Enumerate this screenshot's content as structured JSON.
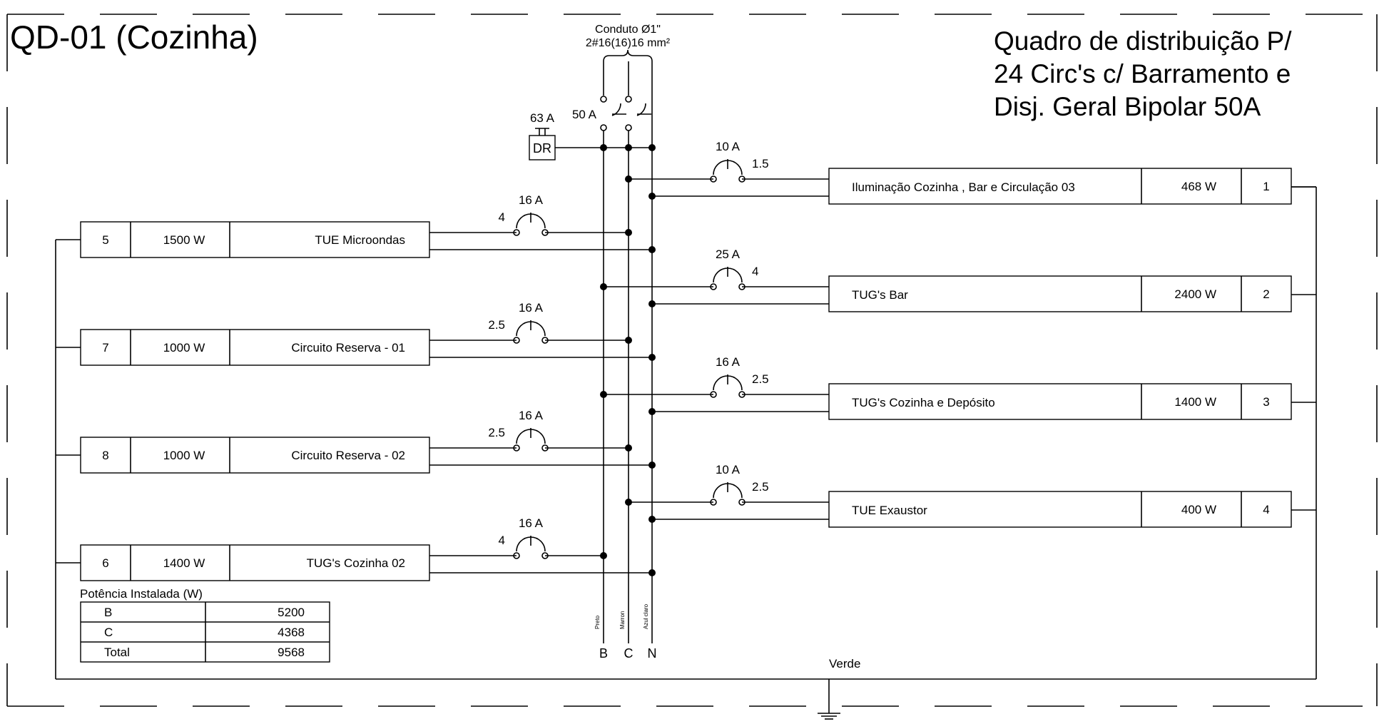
{
  "panel": {
    "name": "QD-01 (Cozinha)",
    "description_lines": [
      "Quadro de distribuição P/",
      "24 Circ's c/ Barramento e",
      "Disj. Geral Bipolar 50A"
    ]
  },
  "main_feed": {
    "conduit": "Conduto Ø1\"",
    "cable": "2#16(16)16 mm²",
    "main_breaker": "50 A",
    "dr_rating": "63 A",
    "dr_label": "DR"
  },
  "circuits_right": [
    {
      "number": "1",
      "power": "468 W",
      "description": "Iluminação Cozinha , Bar e Circulação 03",
      "breaker": "10 A",
      "wire": "1.5"
    },
    {
      "number": "2",
      "power": "2400 W",
      "description": "TUG's Bar",
      "breaker": "25 A",
      "wire": "4"
    },
    {
      "number": "3",
      "power": "1400 W",
      "description": "TUG's Cozinha e Depósito",
      "breaker": "16 A",
      "wire": "2.5"
    },
    {
      "number": "4",
      "power": "400 W",
      "description": "TUE Exaustor",
      "breaker": "10 A",
      "wire": "2.5"
    }
  ],
  "circuits_left": [
    {
      "number": "5",
      "power": "1500 W",
      "description": "TUE Microondas",
      "breaker": "16 A",
      "wire": "4"
    },
    {
      "number": "7",
      "power": "1000 W",
      "description": "Circuito Reserva - 01",
      "breaker": "16 A",
      "wire": "2.5"
    },
    {
      "number": "8",
      "power": "1000 W",
      "description": "Circuito  Reserva - 02",
      "breaker": "16 A",
      "wire": "2.5"
    },
    {
      "number": "6",
      "power": "1400 W",
      "description": "TUG's Cozinha 02",
      "breaker": "16 A",
      "wire": "4"
    }
  ],
  "power_table": {
    "title": "Potência Instalada (W)",
    "rows": [
      {
        "phase": "B",
        "value": "5200"
      },
      {
        "phase": "C",
        "value": "4368"
      },
      {
        "phase": "Total",
        "value": "9568"
      }
    ]
  },
  "bus_labels": {
    "B": "B",
    "C": "C",
    "N": "N",
    "color_b": "Preto",
    "color_c": "Marron",
    "color_n": "Azul claro",
    "ground": "Verde"
  }
}
